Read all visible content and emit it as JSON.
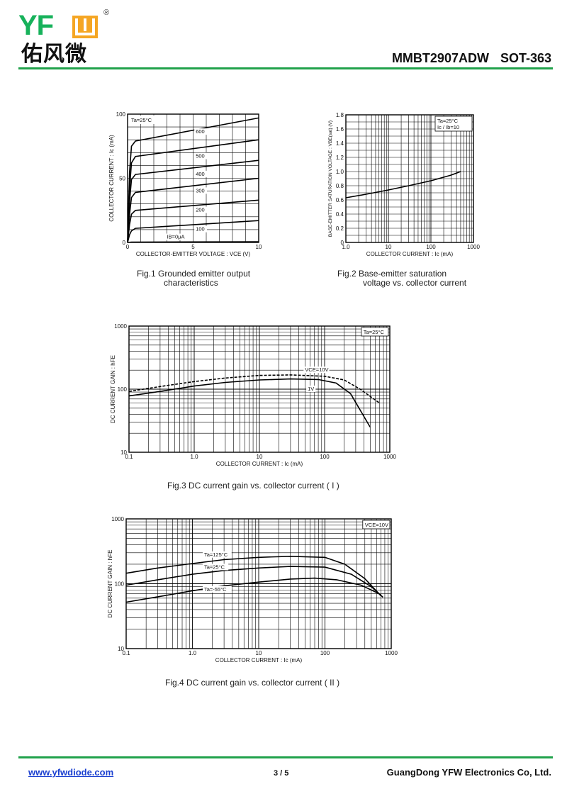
{
  "header": {
    "brand_latin": "YFW",
    "brand_chinese": "佑风微",
    "registered": "®",
    "part_number": "MMBT2907ADW",
    "package": "SOT-363"
  },
  "footer": {
    "website": "www.yfwdiode.com",
    "page": "3 / 5",
    "company": "GuangDong YFW Electronics Co, Ltd."
  },
  "chart_data": [
    {
      "id": "fig1",
      "type": "line",
      "caption_line1": "Fig.1   Grounded emitter output",
      "caption_line2": "characteristics",
      "xlabel": "COLLECTOR-EMITTER  VOLTAGE : VCE (V)",
      "ylabel": "COLLECTOR  CURRENT : Ic (mA)",
      "xlim": [
        0,
        10
      ],
      "ylim": [
        0,
        100
      ],
      "xticks": [
        {
          "value": 0,
          "label": "0"
        },
        {
          "value": 5,
          "label": "5"
        },
        {
          "value": 10,
          "label": "10"
        }
      ],
      "yticks": [
        {
          "value": 0,
          "label": "0"
        },
        {
          "value": 50,
          "label": "50"
        },
        {
          "value": 100,
          "label": "100"
        }
      ],
      "annotation": "Ta=25°C",
      "series": [
        {
          "name": "IB=0μA",
          "label_x": 3.0,
          "label_y": 3,
          "points": [
            [
              0,
              0
            ],
            [
              0.3,
              0.3
            ],
            [
              10,
              0.5
            ]
          ]
        },
        {
          "name": "100",
          "label_x": 5.2,
          "label_y": 9,
          "points": [
            [
              0,
              0
            ],
            [
              0.15,
              6
            ],
            [
              0.3,
              9
            ],
            [
              0.6,
              11
            ],
            [
              10,
              17
            ]
          ]
        },
        {
          "name": "200",
          "label_x": 5.2,
          "label_y": 24,
          "points": [
            [
              0,
              0
            ],
            [
              0.15,
              14
            ],
            [
              0.3,
              22
            ],
            [
              0.6,
              25
            ],
            [
              10,
              33
            ]
          ]
        },
        {
          "name": "300",
          "label_x": 5.2,
          "label_y": 39,
          "points": [
            [
              0,
              0
            ],
            [
              0.15,
              22
            ],
            [
              0.3,
              35
            ],
            [
              0.6,
              39
            ],
            [
              10,
              50
            ]
          ]
        },
        {
          "name": "400",
          "label_x": 5.2,
          "label_y": 52,
          "points": [
            [
              0,
              0
            ],
            [
              0.15,
              32
            ],
            [
              0.3,
              49
            ],
            [
              0.6,
              53
            ],
            [
              10,
              64
            ]
          ]
        },
        {
          "name": "500",
          "label_x": 5.2,
          "label_y": 66,
          "points": [
            [
              0,
              0
            ],
            [
              0.15,
              42
            ],
            [
              0.3,
              62
            ],
            [
              0.6,
              67
            ],
            [
              10,
              80
            ]
          ]
        },
        {
          "name": "600",
          "label_x": 5.2,
          "label_y": 85,
          "points": [
            [
              0,
              0
            ],
            [
              0.15,
              55
            ],
            [
              0.3,
              75
            ],
            [
              0.6,
              79
            ],
            [
              10,
              97
            ]
          ]
        }
      ]
    },
    {
      "id": "fig2",
      "type": "line",
      "caption_line1": "Fig.2  Base-emitter saturation",
      "caption_line2": "voltage vs. collector current",
      "xlabel": "COLLECTOR  CURRENT : Ic (mA)",
      "ylabel": "BASE-EMITTER SATURATION VOLTAGE : VBE(sat) (V)",
      "xscale": "log",
      "xlim": [
        1,
        1000
      ],
      "ylim": [
        0,
        1.8
      ],
      "xticks": [
        {
          "value": 1,
          "label": "1.0"
        },
        {
          "value": 10,
          "label": "10"
        },
        {
          "value": 100,
          "label": "100"
        },
        {
          "value": 1000,
          "label": "1000"
        }
      ],
      "yticks": [
        {
          "value": 0,
          "label": "0"
        },
        {
          "value": 0.2,
          "label": "0.2"
        },
        {
          "value": 0.4,
          "label": "0.4"
        },
        {
          "value": 0.6,
          "label": "0.6"
        },
        {
          "value": 0.8,
          "label": "0.8"
        },
        {
          "value": 1.0,
          "label": "1.0"
        },
        {
          "value": 1.2,
          "label": "1.2"
        },
        {
          "value": 1.4,
          "label": "1.4"
        },
        {
          "value": 1.6,
          "label": "1.6"
        },
        {
          "value": 1.8,
          "label": "1.8"
        }
      ],
      "annotation": "Ta=25°C",
      "annotation2": "Ic / Ib=10",
      "series": [
        {
          "name": "Ic/Ib=10",
          "points": [
            [
              1,
              0.63
            ],
            [
              3,
              0.68
            ],
            [
              10,
              0.74
            ],
            [
              30,
              0.8
            ],
            [
              100,
              0.87
            ],
            [
              300,
              0.95
            ],
            [
              500,
              1.0
            ]
          ]
        }
      ]
    },
    {
      "id": "fig3",
      "type": "line",
      "caption": "Fig.3  DC current gain vs. collector current ( I )",
      "xlabel": "COLLECTOR  CURRENT : Ic (mA)",
      "ylabel": "DC CURRENT GAIN : hFE",
      "xscale": "log",
      "yscale": "log",
      "xlim": [
        0.1,
        1000
      ],
      "ylim": [
        10,
        1000
      ],
      "xticks": [
        {
          "value": 0.1,
          "label": "0.1"
        },
        {
          "value": 1,
          "label": "1.0"
        },
        {
          "value": 10,
          "label": "10"
        },
        {
          "value": 100,
          "label": "100"
        },
        {
          "value": 1000,
          "label": "1000"
        }
      ],
      "yticks": [
        {
          "value": 10,
          "label": "10"
        },
        {
          "value": 100,
          "label": "100"
        },
        {
          "value": 1000,
          "label": "1000"
        }
      ],
      "annotation": "Ta=25°C",
      "series": [
        {
          "name": "VCE=10V",
          "label_x": 50,
          "label_y": 190,
          "dashed": true,
          "points": [
            [
              0.1,
              92
            ],
            [
              0.3,
              110
            ],
            [
              1,
              132
            ],
            [
              3,
              150
            ],
            [
              10,
              165
            ],
            [
              30,
              168
            ],
            [
              100,
              160
            ],
            [
              200,
              140
            ],
            [
              350,
              100
            ],
            [
              700,
              60
            ]
          ]
        },
        {
          "name": "1V",
          "label_x": 55,
          "label_y": 95,
          "dashed": false,
          "points": [
            [
              0.1,
              78
            ],
            [
              0.3,
              92
            ],
            [
              1,
              112
            ],
            [
              3,
              128
            ],
            [
              10,
              140
            ],
            [
              30,
              145
            ],
            [
              80,
              142
            ],
            [
              150,
              125
            ],
            [
              250,
              85
            ],
            [
              500,
              25
            ]
          ]
        }
      ]
    },
    {
      "id": "fig4",
      "type": "line",
      "caption": "Fig.4  DC current gain vs. collector current ( II )",
      "xlabel": "COLLECTOR  CURRENT : Ic (mA)",
      "ylabel": "DC CURRENT GAIN : hFE",
      "xscale": "log",
      "yscale": "log",
      "xlim": [
        0.1,
        1000
      ],
      "ylim": [
        10,
        1000
      ],
      "xticks": [
        {
          "value": 0.1,
          "label": "0.1"
        },
        {
          "value": 1,
          "label": "1.0"
        },
        {
          "value": 10,
          "label": "10"
        },
        {
          "value": 100,
          "label": "100"
        },
        {
          "value": 1000,
          "label": "1000"
        }
      ],
      "yticks": [
        {
          "value": 10,
          "label": "10"
        },
        {
          "value": 100,
          "label": "100"
        },
        {
          "value": 1000,
          "label": "1000"
        }
      ],
      "annotation": "VCE=10V",
      "series": [
        {
          "name": "Ta=125°C",
          "label_x": 1.5,
          "label_y": 265,
          "points": [
            [
              0.1,
              145
            ],
            [
              0.3,
              175
            ],
            [
              1,
              205
            ],
            [
              3,
              235
            ],
            [
              10,
              255
            ],
            [
              30,
              265
            ],
            [
              100,
              255
            ],
            [
              200,
              200
            ],
            [
              400,
              120
            ],
            [
              700,
              65
            ]
          ]
        },
        {
          "name": "Ta=25°C",
          "label_x": 1.5,
          "label_y": 170,
          "points": [
            [
              0.1,
              95
            ],
            [
              0.3,
              115
            ],
            [
              1,
              140
            ],
            [
              3,
              160
            ],
            [
              10,
              175
            ],
            [
              30,
              185
            ],
            [
              100,
              180
            ],
            [
              250,
              140
            ],
            [
              500,
              90
            ],
            [
              750,
              62
            ]
          ]
        },
        {
          "name": "Ta=-55°C",
          "label_x": 1.5,
          "label_y": 77,
          "points": [
            [
              0.1,
              52
            ],
            [
              0.3,
              63
            ],
            [
              1,
              78
            ],
            [
              3,
              93
            ],
            [
              10,
              106
            ],
            [
              30,
              118
            ],
            [
              70,
              122
            ],
            [
              150,
              115
            ],
            [
              350,
              95
            ],
            [
              700,
              68
            ]
          ]
        }
      ]
    }
  ]
}
